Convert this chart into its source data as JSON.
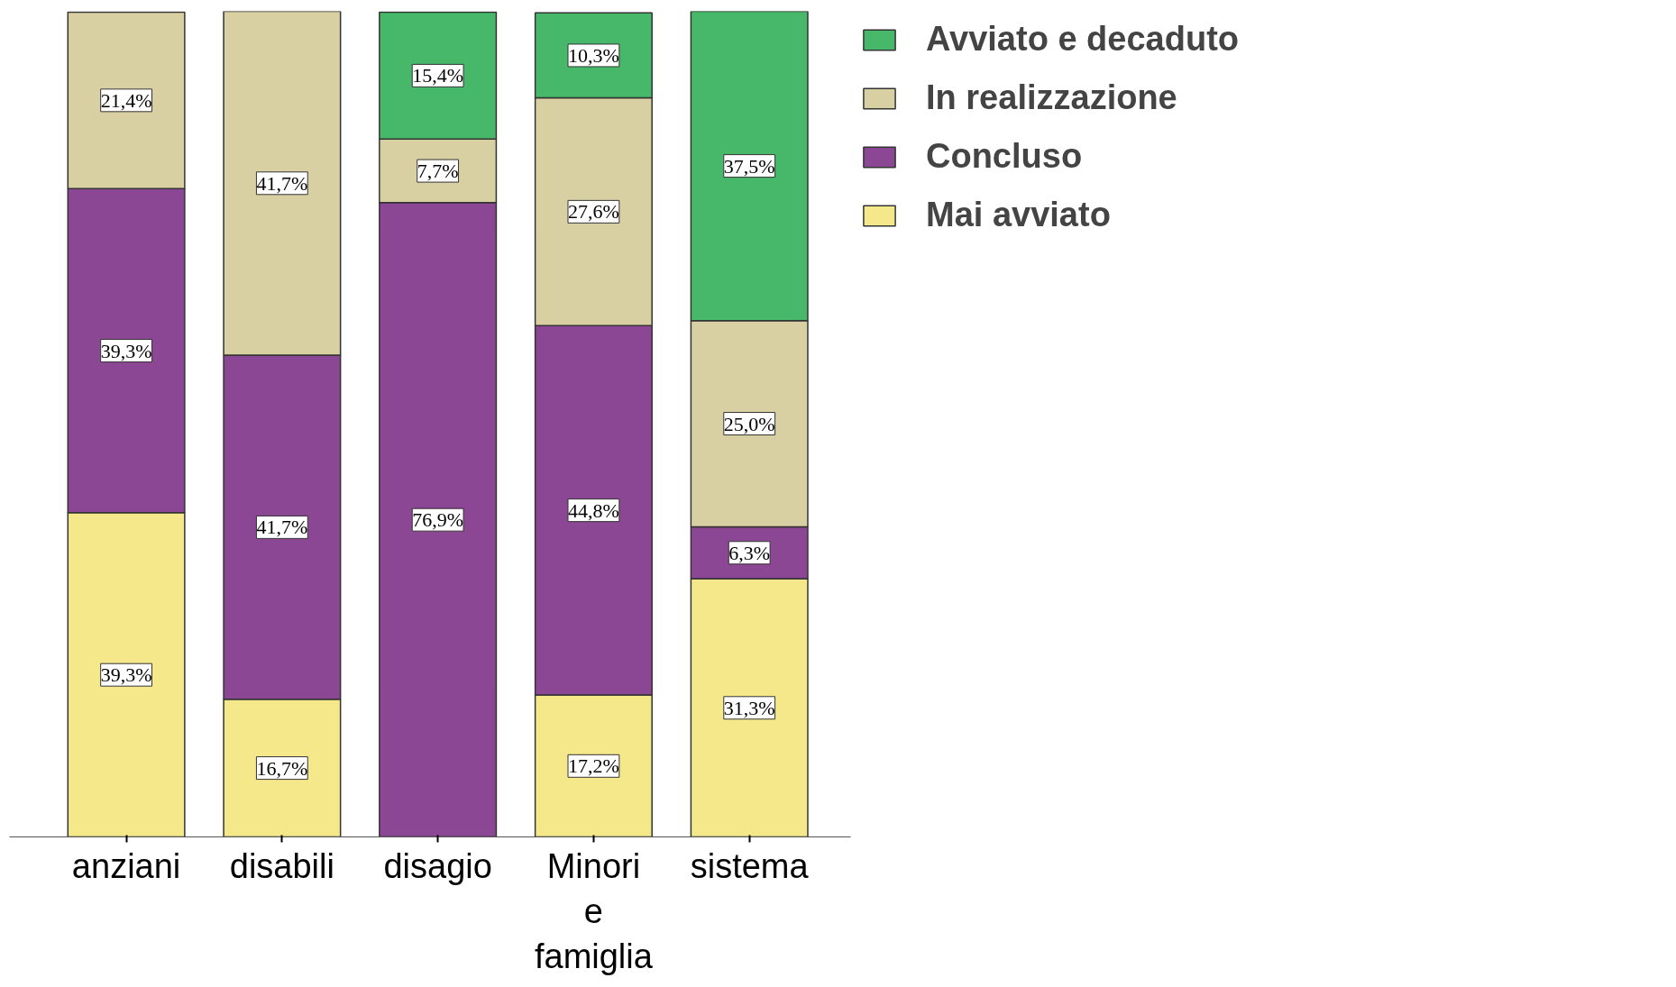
{
  "chart_data": {
    "type": "bar",
    "stacked": true,
    "categories": [
      "anziani",
      "disabili",
      "disagio",
      "Minori e famiglia",
      "sistema"
    ],
    "series": [
      {
        "name": "Mai avviato",
        "color": "#f5e88a",
        "values": [
          39.3,
          16.7,
          null,
          17.2,
          31.3
        ],
        "value_labels": [
          "39,3%",
          "16,7%",
          null,
          "17,2%",
          "31,3%"
        ]
      },
      {
        "name": "Concluso",
        "color": "#8b4793",
        "values": [
          39.3,
          41.7,
          76.9,
          44.8,
          6.3
        ],
        "value_labels": [
          "39,3%",
          "41,7%",
          "76,9%",
          "44,8%",
          "6,3%"
        ]
      },
      {
        "name": "In realizzazione",
        "color": "#d8cfa3",
        "values": [
          21.4,
          41.7,
          7.7,
          27.6,
          25.0
        ],
        "value_labels": [
          "21,4%",
          "41,7%",
          "7,7%",
          "27,6%",
          "25,0%"
        ]
      },
      {
        "name": "Avviato e decaduto",
        "color": "#47b86a",
        "values": [
          null,
          null,
          15.4,
          10.3,
          37.5
        ],
        "value_labels": [
          null,
          null,
          "15,4%",
          "10,3%",
          "37,5%"
        ]
      }
    ],
    "legend": "top right",
    "grid": false
  }
}
